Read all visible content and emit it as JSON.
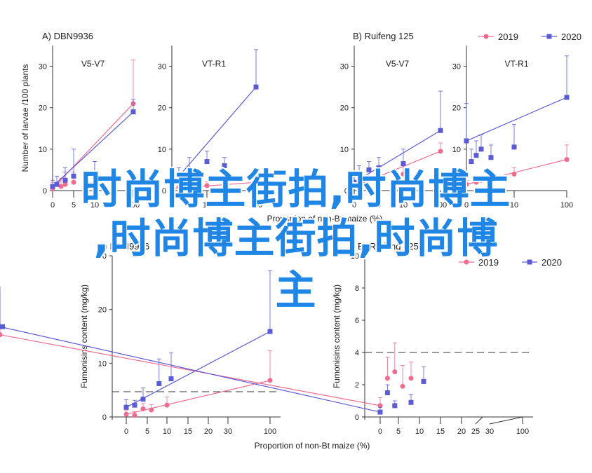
{
  "colors": {
    "2019": "#f06b8e",
    "2020": "#5b5bd6",
    "axis": "#333333",
    "overlay": "#1f86e6"
  },
  "overlay_lines": [
    "时尚博主街拍,时尚博主",
    ",时尚博主街拍,时尚博",
    "主"
  ],
  "chart_data": [
    {
      "type": "line",
      "panel": "A",
      "title": "DBN9936",
      "subtitle": "V5-V7",
      "xlabel": "Proportion of non-Bt maize (%)",
      "ylabel": "Number of larvae /100 plants",
      "xticks": [
        0,
        5,
        10,
        100
      ],
      "xticklabels": [
        "0",
        "5",
        "10",
        "100"
      ],
      "ylim": [
        0,
        35
      ],
      "yticks": [
        0,
        10,
        20,
        30
      ],
      "series": [
        {
          "name": "2019",
          "marker": "circle",
          "x": [
            0,
            2,
            3,
            5,
            10,
            100
          ],
          "y": [
            0.5,
            1.0,
            1.5,
            2.0,
            4,
            21
          ],
          "err": [
            1.5,
            2,
            3,
            2.5,
            3,
            10.5
          ]
        },
        {
          "name": "2020",
          "marker": "square",
          "x": [
            0,
            1,
            3,
            5,
            10,
            100
          ],
          "y": [
            1.0,
            1.5,
            2.5,
            3.5,
            4,
            19
          ],
          "err": [
            1.5,
            2,
            3,
            6.5,
            3,
            3
          ]
        }
      ]
    },
    {
      "type": "line",
      "panel": "A",
      "subtitle": "VT-R1",
      "xticks": [
        0,
        5,
        10,
        20,
        100
      ],
      "xticklabels": [
        "0",
        "5",
        "10",
        "20",
        "100"
      ],
      "ylim": [
        0,
        35
      ],
      "yticks": [
        0,
        10,
        20,
        30
      ],
      "series": [
        {
          "name": "2019",
          "marker": "circle",
          "x": [
            0,
            2,
            5,
            10,
            20,
            100
          ],
          "y": [
            0.5,
            0.8,
            1.0,
            1.2,
            1.5,
            2.0
          ],
          "err": [
            1,
            1,
            1,
            1,
            1,
            1
          ]
        },
        {
          "name": "2020",
          "marker": "square",
          "x": [
            0,
            2,
            5,
            10,
            20,
            100
          ],
          "y": [
            1.5,
            3.5,
            5,
            7,
            6,
            25
          ],
          "err": [
            2,
            2,
            3,
            2.5,
            2,
            9
          ]
        }
      ]
    },
    {
      "type": "line",
      "panel": "B",
      "title": "Ruifeng 125",
      "subtitle": "V5-V7",
      "xticks": [
        0,
        5,
        10,
        100
      ],
      "xticklabels": [
        "0",
        "5",
        "10",
        "100"
      ],
      "ylim": [
        0,
        35
      ],
      "yticks": [
        0,
        10,
        20,
        30
      ],
      "series": [
        {
          "name": "2019",
          "marker": "circle",
          "x": [
            0,
            2,
            5,
            10,
            100
          ],
          "y": [
            1,
            2,
            3,
            4,
            9.5
          ],
          "err": [
            1,
            1.5,
            1.5,
            2,
            2
          ]
        },
        {
          "name": "2020",
          "marker": "square",
          "x": [
            0,
            1,
            3,
            5,
            10,
            100
          ],
          "y": [
            2,
            4,
            5,
            5.5,
            6.5,
            14.5
          ],
          "err": [
            1.5,
            2,
            2,
            2.5,
            3.5,
            9.5
          ]
        }
      ]
    },
    {
      "type": "line",
      "panel": "B",
      "subtitle": "VT-R1",
      "xticks": [
        0,
        5,
        10,
        100
      ],
      "xticklabels": [
        "0",
        "5",
        "10",
        "100"
      ],
      "ylim": [
        0,
        35
      ],
      "yticks": [
        0,
        10,
        20,
        30
      ],
      "series": [
        {
          "name": "2019",
          "marker": "circle",
          "x": [
            0,
            2,
            3,
            5,
            10,
            100
          ],
          "y": [
            1.5,
            2,
            2.5,
            3,
            4,
            7.5
          ],
          "err": [
            1,
            1,
            1,
            1,
            1.5,
            3.5
          ]
        },
        {
          "name": "2020",
          "marker": "square",
          "x": [
            0,
            1,
            2,
            3,
            5,
            10,
            100
          ],
          "y": [
            12,
            7,
            8.5,
            10,
            8,
            10.5,
            22.5
          ],
          "err": [
            9,
            3,
            3.5,
            3.5,
            3,
            5.5,
            10
          ]
        }
      ]
    },
    {
      "type": "line",
      "panel": "A",
      "title": "DBN9936",
      "xlabel": "Proportion of non-Bt maize (%)",
      "ylabel": "Fumonisins content (mg/kg)",
      "xticks": [
        0,
        5,
        10,
        15,
        20,
        30,
        100
      ],
      "xticklabels": [
        "0",
        "5",
        "10",
        "15",
        "20",
        "30",
        "100"
      ],
      "ylim": [
        0,
        30
      ],
      "yticks": [
        0,
        10,
        20,
        30
      ],
      "reference_line": 4.7,
      "series": [
        {
          "name": "2019",
          "marker": "circle",
          "x": [
            0,
            2,
            4,
            6,
            10,
            100
          ],
          "y": [
            0.5,
            0.3,
            1.5,
            1.3,
            2.2,
            6.8
          ],
          "err": [
            0.8,
            0.7,
            1,
            1,
            1.5,
            5.5
          ]
        },
        {
          "name": "2020",
          "marker": "square",
          "x": [
            0,
            2,
            4,
            8,
            11,
            100
          ],
          "y": [
            1.8,
            2.2,
            3.3,
            6.2,
            7.1,
            15.9
          ],
          "err": [
            1.4,
            0.9,
            2.1,
            4.6,
            4.8,
            11.3
          ]
        }
      ]
    },
    {
      "type": "line",
      "panel": "B",
      "title": "Ruifeng 125",
      "xlabel": "Proportion of non-Bt maize (%)",
      "ylabel": "Fumonisins content (mg/kg)",
      "xticks": [
        0,
        5,
        10,
        15,
        20,
        25,
        30,
        100
      ],
      "xticklabels": [
        "0",
        "5",
        "10",
        "15",
        "20",
        "25",
        "30",
        "100"
      ],
      "ylim": [
        0,
        10
      ],
      "yticks": [
        0,
        2,
        4,
        6,
        8,
        10
      ],
      "reference_line": 4.0,
      "series": [
        {
          "name": "2019",
          "marker": "circle",
          "x": [
            0,
            2,
            4,
            6,
            8,
            100
          ],
          "y": [
            0.7,
            2.4,
            2.8,
            1.9,
            2.4,
            5.1
          ],
          "err": [
            0.5,
            1.3,
            1.8,
            1.3,
            1,
            2.6
          ]
        },
        {
          "name": "2020",
          "marker": "square",
          "x": [
            0,
            2,
            4,
            8,
            11,
            100
          ],
          "y": [
            0.3,
            1.5,
            0.7,
            0.9,
            2.2,
            5.6
          ],
          "err": [
            0.3,
            0.5,
            0.3,
            0.5,
            0.9,
            2.5
          ]
        }
      ]
    }
  ]
}
